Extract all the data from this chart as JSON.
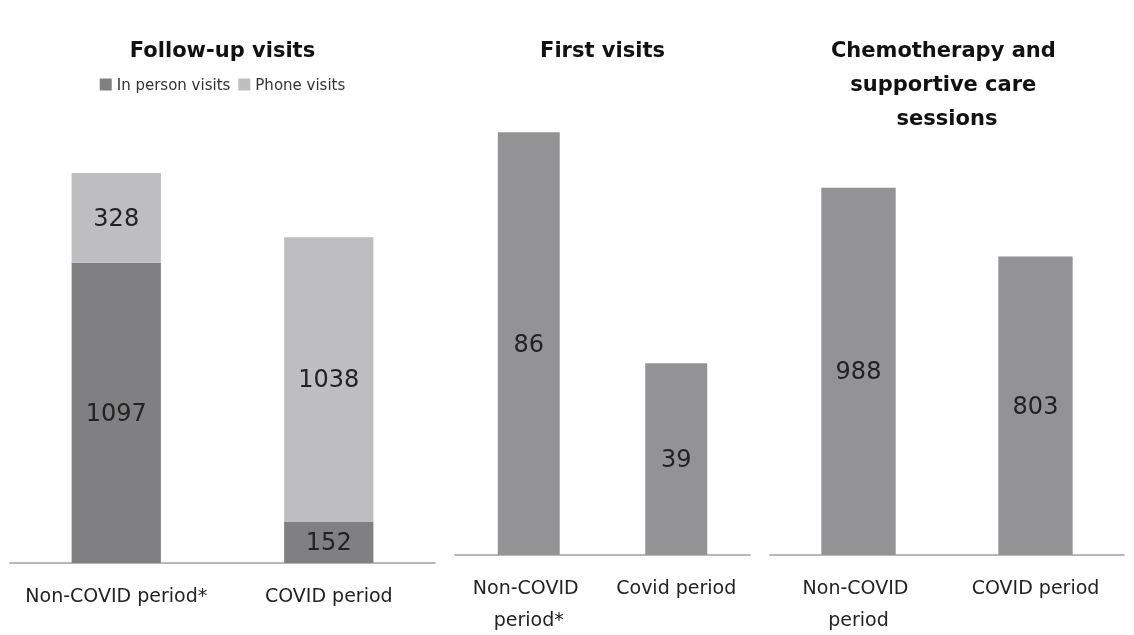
{
  "chart_data": [
    {
      "type": "bar",
      "title": "Follow-up visits",
      "categories": [
        "Non-COVID period*",
        "COVID period"
      ],
      "stacked": true,
      "legend": "top",
      "data_labels": true,
      "tick_labels": "x",
      "series": [
        {
          "name": "In person visits",
          "color": "#808082",
          "values": [
            1097,
            152
          ]
        },
        {
          "name": "Phone visits",
          "color": "#bebec0",
          "values": [
            328,
            1038
          ]
        }
      ]
    },
    {
      "type": "bar",
      "title": "First visits",
      "categories": [
        "Non-COVID period*",
        "Covid period"
      ],
      "data_labels": true,
      "tick_labels": "x",
      "series": [
        {
          "color": "#939395",
          "values": [
            86,
            39
          ]
        }
      ]
    },
    {
      "type": "bar",
      "title": "Chemotherapy and supportive care sessions",
      "categories": [
        "Non-COVID period",
        "COVID period"
      ],
      "data_labels": true,
      "tick_labels": "x",
      "series": [
        {
          "color": "#939395",
          "values": [
            988,
            803
          ]
        }
      ]
    }
  ]
}
